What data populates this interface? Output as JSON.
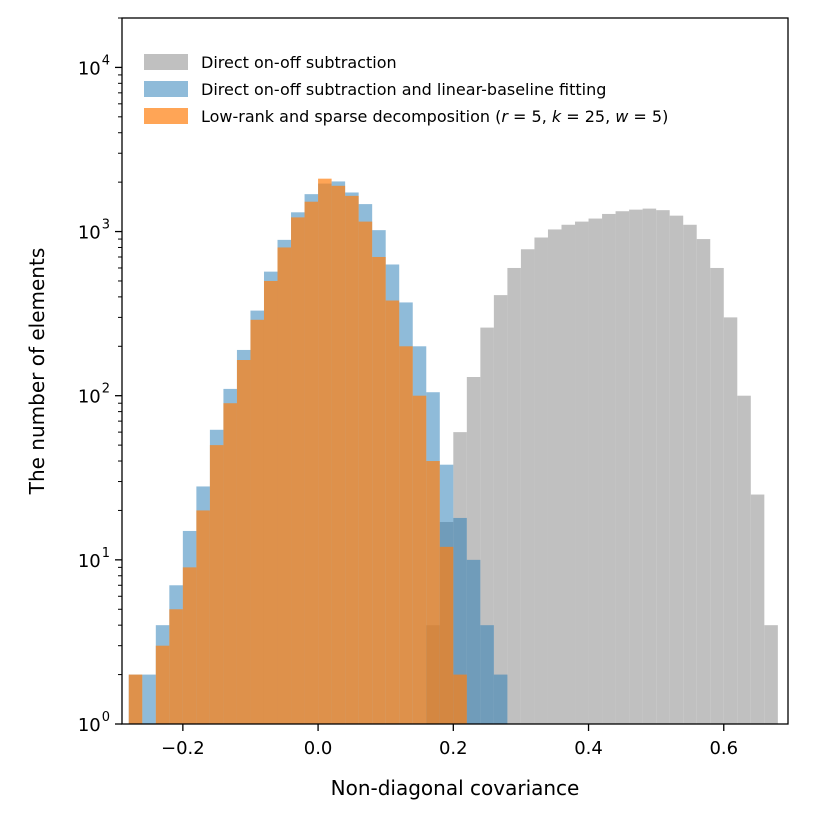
{
  "chart_data": {
    "type": "histogram",
    "xlabel": "Non-diagonal covariance",
    "ylabel": "The number of elements",
    "xlim": [
      -0.29,
      0.695
    ],
    "ylim": [
      1,
      20000
    ],
    "yscale": "log",
    "bin_width": 0.02,
    "x_ticks": [
      {
        "value": -0.2,
        "label": "−0.2"
      },
      {
        "value": 0.0,
        "label": "0.0"
      },
      {
        "value": 0.2,
        "label": "0.2"
      },
      {
        "value": 0.4,
        "label": "0.4"
      },
      {
        "value": 0.6,
        "label": "0.6"
      }
    ],
    "y_ticks": [
      {
        "value": 1,
        "base": "10",
        "exp": "0"
      },
      {
        "value": 10,
        "base": "10",
        "exp": "1"
      },
      {
        "value": 100,
        "base": "10",
        "exp": "2"
      },
      {
        "value": 1000,
        "base": "10",
        "exp": "3"
      },
      {
        "value": 10000,
        "base": "10",
        "exp": "4"
      }
    ],
    "legend_position": "top-left",
    "series": [
      {
        "name": "Direct on-off subtraction",
        "color": "#b0b0b0",
        "opacity": 0.8,
        "bin_starts": [
          0.16,
          0.18,
          0.2,
          0.22,
          0.24,
          0.26,
          0.28,
          0.3,
          0.32,
          0.34,
          0.36,
          0.38,
          0.4,
          0.42,
          0.44,
          0.46,
          0.48,
          0.5,
          0.52,
          0.54,
          0.56,
          0.58,
          0.6,
          0.62,
          0.64,
          0.66
        ],
        "counts": [
          4,
          17,
          60,
          130,
          260,
          410,
          600,
          780,
          920,
          1030,
          1100,
          1150,
          1200,
          1280,
          1330,
          1360,
          1380,
          1350,
          1250,
          1100,
          900,
          600,
          300,
          100,
          25,
          4
        ]
      },
      {
        "name": "Direct on-off subtraction and linear-baseline fitting",
        "color": "#1f77b4",
        "opacity": 0.5,
        "bin_starts": [
          -0.28,
          -0.26,
          -0.24,
          -0.22,
          -0.2,
          -0.18,
          -0.16,
          -0.14,
          -0.12,
          -0.1,
          -0.08,
          -0.06,
          -0.04,
          -0.02,
          0.0,
          0.02,
          0.04,
          0.06,
          0.08,
          0.1,
          0.12,
          0.14,
          0.16,
          0.18,
          0.2,
          0.22,
          0.24,
          0.26
        ],
        "counts": [
          2,
          2,
          4,
          7,
          15,
          28,
          62,
          110,
          190,
          330,
          570,
          890,
          1310,
          1690,
          1960,
          2020,
          1730,
          1470,
          1020,
          630,
          370,
          200,
          105,
          38,
          18,
          10,
          4,
          2
        ]
      },
      {
        "name": "Low-rank and sparse decomposition (r=5, k=25, w=5)",
        "name_math": {
          "prefix": "Low-rank and sparse decomposition (",
          "r": "r",
          "k": "k",
          "w": "w",
          "r_val": "5",
          "k_val": "25",
          "w_val": "5",
          "suffix": ")"
        },
        "color": "#ff7f0e",
        "opacity": 0.7,
        "bin_starts": [
          -0.28,
          -0.26,
          -0.24,
          -0.22,
          -0.2,
          -0.18,
          -0.16,
          -0.14,
          -0.12,
          -0.1,
          -0.08,
          -0.06,
          -0.04,
          -0.02,
          0.0,
          0.02,
          0.04,
          0.06,
          0.08,
          0.1,
          0.12,
          0.14,
          0.16,
          0.18,
          0.2
        ],
        "counts": [
          2,
          1,
          3,
          5,
          9,
          20,
          50,
          90,
          165,
          290,
          500,
          800,
          1220,
          1520,
          2100,
          1900,
          1650,
          1150,
          700,
          380,
          200,
          100,
          40,
          12,
          2
        ]
      }
    ]
  }
}
